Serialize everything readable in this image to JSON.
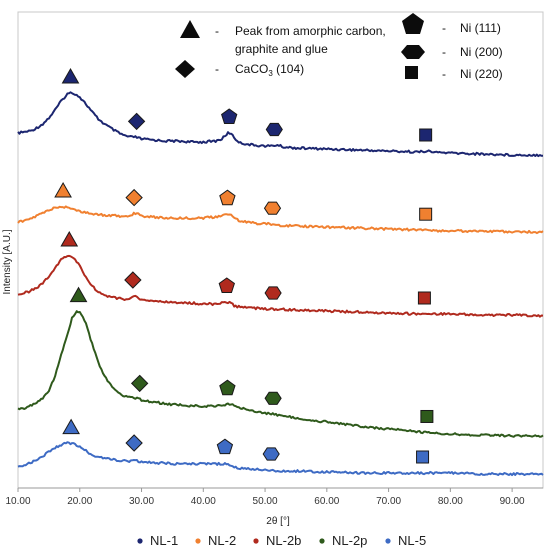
{
  "chart_data": {
    "type": "line",
    "xlabel": "2θ [°]",
    "ylabel": "Intensity [A.U.]",
    "xlim": [
      10,
      95
    ],
    "x_ticks": [
      "10.00",
      "20.00",
      "30.00",
      "40.00",
      "50.00",
      "60.00",
      "70.00",
      "80.00",
      "90.00"
    ],
    "y_ticks_shown": false,
    "grid": false,
    "legend_position": "bottom",
    "peak_key": {
      "triangle_dash": "-",
      "triangle_label_line1": "Peak from amorphic carbon,",
      "triangle_label_line2": "graphite and glue",
      "diamond_dash": "-",
      "diamond_label_main": "CaCO",
      "diamond_label_sub": "3",
      "diamond_label_rest": " (104)",
      "pentagon_dash": "-",
      "pentagon_label": "Ni (111)",
      "hexagon_dash": "-",
      "hexagon_label": "Ni (200)",
      "square_dash": "-",
      "square_label": "Ni (220)"
    },
    "series": [
      {
        "name": "NL-1",
        "color": "#1c2670",
        "points": [
          [
            10,
            133
          ],
          [
            11,
            132
          ],
          [
            12,
            131
          ],
          [
            13,
            128
          ],
          [
            14,
            124
          ],
          [
            15,
            118
          ],
          [
            16,
            110
          ],
          [
            17,
            101
          ],
          [
            18,
            94
          ],
          [
            18.5,
            93
          ],
          [
            19,
            93
          ],
          [
            20,
            97
          ],
          [
            21,
            104
          ],
          [
            22,
            112
          ],
          [
            23,
            119
          ],
          [
            24,
            124
          ],
          [
            25,
            128
          ],
          [
            26,
            132
          ],
          [
            27,
            135
          ],
          [
            28,
            137
          ],
          [
            29,
            137
          ],
          [
            30,
            139
          ],
          [
            32,
            140
          ],
          [
            34,
            141
          ],
          [
            36,
            141
          ],
          [
            38,
            142
          ],
          [
            40,
            142
          ],
          [
            42,
            141
          ],
          [
            43,
            139
          ],
          [
            44,
            133
          ],
          [
            44.5,
            133
          ],
          [
            45,
            138
          ],
          [
            46,
            143
          ],
          [
            48,
            145
          ],
          [
            50,
            146
          ],
          [
            51,
            146
          ],
          [
            52,
            145
          ],
          [
            53,
            147
          ],
          [
            55,
            148
          ],
          [
            60,
            149
          ],
          [
            65,
            150
          ],
          [
            70,
            151
          ],
          [
            75,
            152
          ],
          [
            76,
            151
          ],
          [
            77,
            152
          ],
          [
            80,
            153
          ],
          [
            85,
            154
          ],
          [
            90,
            155
          ],
          [
            95,
            155
          ]
        ],
        "markers": {
          "triangle": 18.5,
          "diamond": 29.2,
          "pentagon": 44.2,
          "hexagon": 51.5,
          "square": 76.0
        }
      },
      {
        "name": "NL-2",
        "color": "#f08030",
        "points": [
          [
            10,
            222
          ],
          [
            11,
            221
          ],
          [
            12,
            219
          ],
          [
            13,
            216
          ],
          [
            14,
            213
          ],
          [
            15,
            210
          ],
          [
            16,
            208
          ],
          [
            17,
            207
          ],
          [
            18,
            207
          ],
          [
            19,
            209
          ],
          [
            20,
            211
          ],
          [
            21,
            213
          ],
          [
            22,
            214
          ],
          [
            24,
            215
          ],
          [
            26,
            216
          ],
          [
            28,
            216
          ],
          [
            29,
            213
          ],
          [
            29.5,
            213
          ],
          [
            30,
            216
          ],
          [
            32,
            217
          ],
          [
            34,
            218
          ],
          [
            36,
            218
          ],
          [
            38,
            218
          ],
          [
            40,
            218
          ],
          [
            42,
            217
          ],
          [
            43,
            216
          ],
          [
            44,
            214
          ],
          [
            44.5,
            214
          ],
          [
            45,
            218
          ],
          [
            46,
            221
          ],
          [
            48,
            223
          ],
          [
            50,
            224
          ],
          [
            51,
            224
          ],
          [
            52,
            225
          ],
          [
            55,
            226
          ],
          [
            60,
            227
          ],
          [
            65,
            228
          ],
          [
            70,
            229
          ],
          [
            75,
            230
          ],
          [
            80,
            231
          ],
          [
            85,
            231
          ],
          [
            90,
            232
          ],
          [
            95,
            232
          ]
        ],
        "markers": {
          "triangle": 17.3,
          "diamond": 28.8,
          "pentagon": 43.9,
          "hexagon": 51.2,
          "square": 76.0
        }
      },
      {
        "name": "NL-2b",
        "color": "#b02a1e",
        "points": [
          [
            10,
            294
          ],
          [
            11,
            293
          ],
          [
            12,
            291
          ],
          [
            13,
            288
          ],
          [
            14,
            283
          ],
          [
            15,
            276
          ],
          [
            16,
            268
          ],
          [
            17,
            260
          ],
          [
            17.8,
            256
          ],
          [
            18.5,
            256
          ],
          [
            19,
            258
          ],
          [
            20,
            266
          ],
          [
            21,
            277
          ],
          [
            22,
            286
          ],
          [
            23,
            292
          ],
          [
            24,
            295
          ],
          [
            25,
            297
          ],
          [
            26,
            298
          ],
          [
            27,
            299
          ],
          [
            28,
            299
          ],
          [
            28.6,
            296
          ],
          [
            29,
            296
          ],
          [
            29.5,
            299
          ],
          [
            30,
            300
          ],
          [
            32,
            301
          ],
          [
            34,
            302
          ],
          [
            36,
            303
          ],
          [
            38,
            303
          ],
          [
            40,
            304
          ],
          [
            42,
            304
          ],
          [
            43,
            303
          ],
          [
            43.8,
            302
          ],
          [
            44.5,
            303
          ],
          [
            45,
            306
          ],
          [
            46,
            307
          ],
          [
            48,
            308
          ],
          [
            50,
            309
          ],
          [
            51,
            309
          ],
          [
            52,
            309
          ],
          [
            55,
            310
          ],
          [
            60,
            311
          ],
          [
            65,
            312
          ],
          [
            70,
            313
          ],
          [
            75,
            314
          ],
          [
            80,
            314
          ],
          [
            85,
            315
          ],
          [
            90,
            315
          ],
          [
            95,
            316
          ]
        ],
        "markers": {
          "triangle": 18.3,
          "diamond": 28.6,
          "pentagon": 43.8,
          "hexagon": 51.3,
          "square": 75.8
        }
      },
      {
        "name": "NL-2p",
        "color": "#2f5a1c",
        "points": [
          [
            10,
            409
          ],
          [
            11,
            408
          ],
          [
            12,
            406
          ],
          [
            13,
            403
          ],
          [
            14,
            398
          ],
          [
            15,
            390
          ],
          [
            16,
            376
          ],
          [
            17,
            355
          ],
          [
            18,
            335
          ],
          [
            18.8,
            317
          ],
          [
            19.5,
            311
          ],
          [
            20,
            312
          ],
          [
            21,
            323
          ],
          [
            22,
            344
          ],
          [
            23,
            362
          ],
          [
            24,
            376
          ],
          [
            25,
            385
          ],
          [
            26,
            391
          ],
          [
            27,
            395
          ],
          [
            28,
            397
          ],
          [
            29,
            398
          ],
          [
            30,
            400
          ],
          [
            32,
            402
          ],
          [
            34,
            404
          ],
          [
            36,
            405
          ],
          [
            38,
            406
          ],
          [
            40,
            406
          ],
          [
            42,
            406
          ],
          [
            43,
            406
          ],
          [
            44,
            404
          ],
          [
            45,
            405
          ],
          [
            46,
            408
          ],
          [
            48,
            411
          ],
          [
            50,
            413
          ],
          [
            51,
            414
          ],
          [
            52,
            415
          ],
          [
            55,
            418
          ],
          [
            60,
            422
          ],
          [
            65,
            426
          ],
          [
            70,
            429
          ],
          [
            75,
            432
          ],
          [
            80,
            434
          ],
          [
            85,
            435
          ],
          [
            90,
            436
          ],
          [
            95,
            436
          ]
        ],
        "markers": {
          "triangle": 19.8,
          "diamond": 29.7,
          "pentagon": 43.9,
          "hexagon": 51.3,
          "square": 76.2
        }
      },
      {
        "name": "NL-5",
        "color": "#3e6bc4",
        "points": [
          [
            10,
            466
          ],
          [
            11,
            465
          ],
          [
            12,
            463
          ],
          [
            13,
            460
          ],
          [
            14,
            456
          ],
          [
            15,
            452
          ],
          [
            16,
            448
          ],
          [
            17,
            445
          ],
          [
            18,
            443
          ],
          [
            19,
            444
          ],
          [
            20,
            447
          ],
          [
            21,
            451
          ],
          [
            22,
            455
          ],
          [
            24,
            458
          ],
          [
            26,
            460
          ],
          [
            28,
            461
          ],
          [
            28.8,
            459
          ],
          [
            29.5,
            461
          ],
          [
            30,
            462
          ],
          [
            32,
            463
          ],
          [
            34,
            463
          ],
          [
            36,
            464
          ],
          [
            38,
            464
          ],
          [
            40,
            464
          ],
          [
            42,
            464
          ],
          [
            43,
            464
          ],
          [
            43.6,
            463
          ],
          [
            44.5,
            465
          ],
          [
            45,
            467
          ],
          [
            46,
            468
          ],
          [
            48,
            469
          ],
          [
            50,
            470
          ],
          [
            51,
            470
          ],
          [
            52,
            471
          ],
          [
            55,
            471
          ],
          [
            60,
            472
          ],
          [
            65,
            473
          ],
          [
            70,
            473
          ],
          [
            75,
            473
          ],
          [
            80,
            473
          ],
          [
            85,
            474
          ],
          [
            90,
            474
          ],
          [
            95,
            474
          ]
        ],
        "markers": {
          "triangle": 18.6,
          "diamond": 28.8,
          "pentagon": 43.5,
          "hexagon": 51.0,
          "square": 75.5
        }
      }
    ]
  }
}
